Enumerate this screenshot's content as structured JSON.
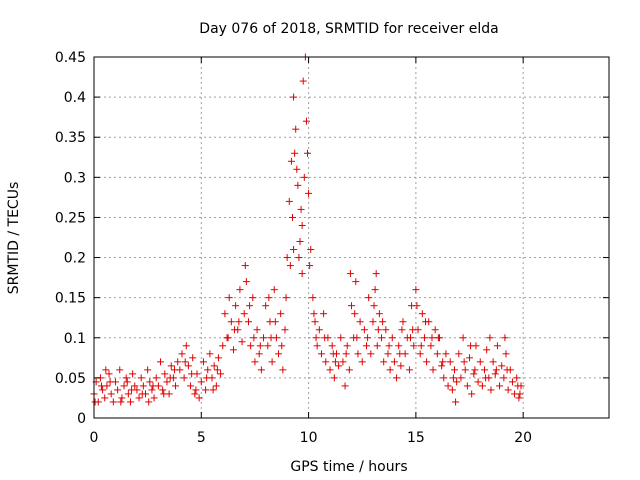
{
  "chart_data": {
    "type": "scatter",
    "title": "Day 076 of 2018, SRMTID for receiver elda",
    "xlabel": "GPS time / hours",
    "ylabel": "SRMTID / TECUs",
    "xlim": [
      0,
      24
    ],
    "ylim": [
      0,
      0.45
    ],
    "x_ticks": [
      0,
      5,
      10,
      15,
      20
    ],
    "y_ticks": [
      0,
      0.05,
      0.1,
      0.15,
      0.2,
      0.25,
      0.3,
      0.35,
      0.4,
      0.45
    ],
    "x_tick_labels": [
      "0",
      "5",
      "10",
      "15",
      "20"
    ],
    "y_tick_labels": [
      "0",
      "0.05",
      "0.1",
      "0.15",
      "0.2",
      "0.25",
      "0.3",
      "0.35",
      "0.4",
      "0.45"
    ],
    "grid": true,
    "marker": "+",
    "color": "#e00000",
    "series": [
      {
        "name": "SRMTID",
        "points": [
          [
            0.0,
            0.03
          ],
          [
            0.1,
            0.045
          ],
          [
            0.2,
            0.02
          ],
          [
            0.3,
            0.05
          ],
          [
            0.4,
            0.035
          ],
          [
            0.5,
            0.025
          ],
          [
            0.6,
            0.04
          ],
          [
            0.7,
            0.055
          ],
          [
            0.8,
            0.03
          ],
          [
            0.9,
            0.02
          ],
          [
            1.0,
            0.045
          ],
          [
            1.1,
            0.035
          ],
          [
            1.2,
            0.06
          ],
          [
            1.3,
            0.025
          ],
          [
            1.4,
            0.04
          ],
          [
            1.5,
            0.05
          ],
          [
            1.6,
            0.03
          ],
          [
            1.7,
            0.02
          ],
          [
            1.8,
            0.055
          ],
          [
            1.9,
            0.04
          ],
          [
            2.0,
            0.035
          ],
          [
            2.1,
            0.025
          ],
          [
            2.2,
            0.05
          ],
          [
            2.3,
            0.04
          ],
          [
            2.4,
            0.03
          ],
          [
            2.5,
            0.06
          ],
          [
            2.6,
            0.045
          ],
          [
            2.7,
            0.035
          ],
          [
            2.8,
            0.025
          ],
          [
            2.9,
            0.05
          ],
          [
            3.0,
            0.04
          ],
          [
            3.1,
            0.07
          ],
          [
            3.2,
            0.035
          ],
          [
            3.3,
            0.055
          ],
          [
            3.4,
            0.045
          ],
          [
            3.5,
            0.03
          ],
          [
            3.6,
            0.065
          ],
          [
            3.7,
            0.05
          ],
          [
            3.8,
            0.04
          ],
          [
            3.9,
            0.07
          ],
          [
            4.0,
            0.06
          ],
          [
            4.1,
            0.08
          ],
          [
            4.2,
            0.05
          ],
          [
            4.3,
            0.09
          ],
          [
            4.4,
            0.065
          ],
          [
            4.5,
            0.04
          ],
          [
            4.6,
            0.075
          ],
          [
            4.7,
            0.03
          ],
          [
            4.8,
            0.055
          ],
          [
            4.9,
            0.025
          ],
          [
            5.0,
            0.045
          ],
          [
            5.1,
            0.07
          ],
          [
            5.2,
            0.035
          ],
          [
            5.3,
            0.06
          ],
          [
            5.4,
            0.08
          ],
          [
            5.5,
            0.05
          ],
          [
            5.6,
            0.065
          ],
          [
            5.7,
            0.04
          ],
          [
            5.8,
            0.075
          ],
          [
            5.9,
            0.055
          ],
          [
            6.0,
            0.09
          ],
          [
            6.1,
            0.13
          ],
          [
            6.2,
            0.1
          ],
          [
            6.3,
            0.15
          ],
          [
            6.4,
            0.12
          ],
          [
            6.5,
            0.085
          ],
          [
            6.6,
            0.14
          ],
          [
            6.7,
            0.11
          ],
          [
            6.8,
            0.16
          ],
          [
            6.9,
            0.095
          ],
          [
            7.0,
            0.13
          ],
          [
            7.1,
            0.17
          ],
          [
            7.2,
            0.12
          ],
          [
            7.3,
            0.09
          ],
          [
            7.4,
            0.15
          ],
          [
            7.5,
            0.07
          ],
          [
            7.6,
            0.11
          ],
          [
            7.7,
            0.08
          ],
          [
            7.8,
            0.06
          ],
          [
            7.9,
            0.1
          ],
          [
            8.0,
            0.14
          ],
          [
            8.1,
            0.09
          ],
          [
            8.2,
            0.12
          ],
          [
            8.3,
            0.07
          ],
          [
            8.4,
            0.16
          ],
          [
            8.5,
            0.1
          ],
          [
            8.6,
            0.08
          ],
          [
            8.7,
            0.13
          ],
          [
            8.8,
            0.06
          ],
          [
            8.9,
            0.11
          ],
          [
            9.0,
            0.2
          ],
          [
            9.1,
            0.27
          ],
          [
            9.2,
            0.32
          ],
          [
            9.3,
            0.4
          ],
          [
            9.4,
            0.36
          ],
          [
            9.5,
            0.29
          ],
          [
            9.6,
            0.22
          ],
          [
            9.7,
            0.18
          ],
          [
            9.8,
            0.3
          ],
          [
            9.9,
            0.37
          ],
          [
            10.0,
            0.28
          ],
          [
            10.1,
            0.21
          ],
          [
            10.2,
            0.15
          ],
          [
            10.3,
            0.12
          ],
          [
            10.4,
            0.09
          ],
          [
            10.5,
            0.11
          ],
          [
            10.6,
            0.08
          ],
          [
            10.7,
            0.13
          ],
          [
            10.8,
            0.07
          ],
          [
            10.9,
            0.1
          ],
          [
            11.0,
            0.06
          ],
          [
            11.1,
            0.09
          ],
          [
            11.2,
            0.05
          ],
          [
            11.3,
            0.08
          ],
          [
            11.4,
            0.065
          ],
          [
            11.5,
            0.1
          ],
          [
            11.6,
            0.07
          ],
          [
            11.7,
            0.04
          ],
          [
            11.8,
            0.09
          ],
          [
            11.9,
            0.06
          ],
          [
            12.0,
            0.14
          ],
          [
            12.1,
            0.1
          ],
          [
            12.2,
            0.17
          ],
          [
            12.3,
            0.08
          ],
          [
            12.4,
            0.12
          ],
          [
            12.5,
            0.07
          ],
          [
            12.6,
            0.11
          ],
          [
            12.7,
            0.09
          ],
          [
            12.8,
            0.15
          ],
          [
            12.9,
            0.08
          ],
          [
            13.0,
            0.12
          ],
          [
            13.1,
            0.16
          ],
          [
            13.2,
            0.09
          ],
          [
            13.3,
            0.13
          ],
          [
            13.4,
            0.1
          ],
          [
            13.5,
            0.07
          ],
          [
            13.6,
            0.11
          ],
          [
            13.7,
            0.08
          ],
          [
            13.8,
            0.06
          ],
          [
            13.9,
            0.1
          ],
          [
            14.0,
            0.07
          ],
          [
            14.1,
            0.05
          ],
          [
            14.2,
            0.09
          ],
          [
            14.3,
            0.065
          ],
          [
            14.4,
            0.12
          ],
          [
            14.5,
            0.08
          ],
          [
            14.6,
            0.1
          ],
          [
            14.7,
            0.06
          ],
          [
            14.8,
            0.14
          ],
          [
            14.9,
            0.09
          ],
          [
            15.0,
            0.16
          ],
          [
            15.1,
            0.11
          ],
          [
            15.2,
            0.08
          ],
          [
            15.3,
            0.13
          ],
          [
            15.4,
            0.1
          ],
          [
            15.5,
            0.07
          ],
          [
            15.6,
            0.12
          ],
          [
            15.7,
            0.09
          ],
          [
            15.8,
            0.06
          ],
          [
            15.9,
            0.11
          ],
          [
            16.0,
            0.08
          ],
          [
            16.1,
            0.1
          ],
          [
            16.2,
            0.065
          ],
          [
            16.3,
            0.05
          ],
          [
            16.4,
            0.08
          ],
          [
            16.5,
            0.04
          ],
          [
            16.6,
            0.07
          ],
          [
            16.7,
            0.035
          ],
          [
            16.8,
            0.06
          ],
          [
            16.9,
            0.045
          ],
          [
            17.0,
            0.08
          ],
          [
            17.1,
            0.05
          ],
          [
            17.2,
            0.1
          ],
          [
            17.3,
            0.06
          ],
          [
            17.4,
            0.04
          ],
          [
            17.5,
            0.075
          ],
          [
            17.6,
            0.03
          ],
          [
            17.7,
            0.055
          ],
          [
            17.8,
            0.09
          ],
          [
            17.9,
            0.045
          ],
          [
            18.0,
            0.07
          ],
          [
            18.1,
            0.04
          ],
          [
            18.2,
            0.06
          ],
          [
            18.3,
            0.085
          ],
          [
            18.4,
            0.05
          ],
          [
            18.5,
            0.035
          ],
          [
            18.6,
            0.07
          ],
          [
            18.7,
            0.055
          ],
          [
            18.8,
            0.09
          ],
          [
            18.9,
            0.04
          ],
          [
            19.0,
            0.065
          ],
          [
            19.1,
            0.05
          ],
          [
            19.2,
            0.08
          ],
          [
            19.3,
            0.035
          ],
          [
            19.4,
            0.06
          ],
          [
            19.5,
            0.045
          ],
          [
            19.6,
            0.03
          ],
          [
            19.7,
            0.05
          ],
          [
            19.8,
            0.025
          ],
          [
            19.9,
            0.04
          ],
          [
            0.05,
            0.02
          ],
          [
            0.35,
            0.04
          ],
          [
            0.75,
            0.045
          ],
          [
            1.25,
            0.02
          ],
          [
            1.75,
            0.035
          ],
          [
            2.25,
            0.03
          ],
          [
            2.75,
            0.04
          ],
          [
            3.25,
            0.03
          ],
          [
            3.75,
            0.06
          ],
          [
            4.25,
            0.07
          ],
          [
            4.75,
            0.035
          ],
          [
            5.25,
            0.05
          ],
          [
            5.75,
            0.06
          ],
          [
            6.25,
            0.1
          ],
          [
            6.75,
            0.12
          ],
          [
            7.25,
            0.14
          ],
          [
            7.75,
            0.09
          ],
          [
            8.25,
            0.1
          ],
          [
            8.75,
            0.09
          ],
          [
            9.25,
            0.25
          ],
          [
            9.35,
            0.33
          ],
          [
            9.45,
            0.31
          ],
          [
            9.55,
            0.2
          ],
          [
            9.65,
            0.26
          ],
          [
            9.75,
            0.42
          ],
          [
            9.85,
            0.45
          ],
          [
            9.95,
            0.33
          ],
          [
            10.25,
            0.13
          ],
          [
            10.75,
            0.1
          ],
          [
            11.25,
            0.07
          ],
          [
            11.75,
            0.08
          ],
          [
            12.25,
            0.1
          ],
          [
            12.75,
            0.1
          ],
          [
            13.25,
            0.11
          ],
          [
            13.75,
            0.09
          ],
          [
            14.25,
            0.08
          ],
          [
            14.75,
            0.1
          ],
          [
            15.25,
            0.09
          ],
          [
            15.75,
            0.1
          ],
          [
            16.25,
            0.07
          ],
          [
            16.75,
            0.05
          ],
          [
            17.25,
            0.07
          ],
          [
            17.75,
            0.06
          ],
          [
            18.25,
            0.05
          ],
          [
            18.75,
            0.06
          ],
          [
            19.25,
            0.06
          ],
          [
            19.75,
            0.04
          ],
          [
            0.55,
            0.06
          ],
          [
            1.55,
            0.045
          ],
          [
            2.55,
            0.02
          ],
          [
            3.55,
            0.05
          ],
          [
            4.55,
            0.055
          ],
          [
            5.55,
            0.035
          ],
          [
            6.55,
            0.11
          ],
          [
            7.05,
            0.19
          ],
          [
            7.45,
            0.1
          ],
          [
            8.15,
            0.15
          ],
          [
            8.45,
            0.12
          ],
          [
            8.95,
            0.15
          ],
          [
            9.15,
            0.19
          ],
          [
            9.3,
            0.21
          ],
          [
            9.7,
            0.24
          ],
          [
            10.05,
            0.19
          ],
          [
            10.35,
            0.1
          ],
          [
            11.15,
            0.08
          ],
          [
            11.95,
            0.18
          ],
          [
            12.15,
            0.13
          ],
          [
            13.05,
            0.14
          ],
          [
            13.15,
            0.18
          ],
          [
            13.45,
            0.12
          ],
          [
            14.35,
            0.11
          ],
          [
            14.85,
            0.11
          ],
          [
            15.05,
            0.14
          ],
          [
            15.45,
            0.12
          ],
          [
            16.05,
            0.1
          ],
          [
            16.85,
            0.02
          ],
          [
            17.55,
            0.09
          ],
          [
            18.45,
            0.1
          ],
          [
            19.15,
            0.1
          ],
          [
            19.85,
            0.03
          ]
        ]
      }
    ]
  }
}
